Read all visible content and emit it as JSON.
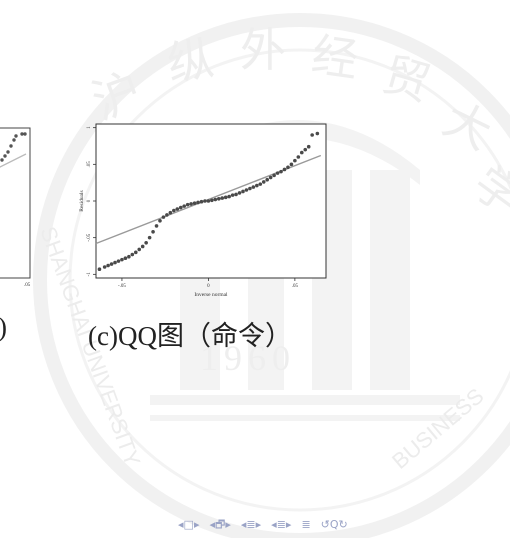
{
  "watermark": {
    "year": "1960",
    "ring_text_left": "SHANGHAI UNIVERSITY",
    "ring_text_right": "BUSINESS"
  },
  "left_figure": {
    "tick_label": ".05",
    "caption_fragment": ")"
  },
  "qq_plot": {
    "xlabel": "Inverse normal",
    "ylabel": "Residuals",
    "x_ticks": [
      "-.05",
      "0",
      ".05"
    ],
    "y_ticks": [
      "-1",
      "-.05",
      "0",
      ".05",
      "1"
    ],
    "caption": "(c)QQ图（命令）"
  },
  "chart_data": {
    "type": "scatter",
    "title": "",
    "xlabel": "Inverse normal",
    "ylabel": "Residuals",
    "xlim": [
      -0.065,
      0.068
    ],
    "ylim": [
      -1.05,
      1.05
    ],
    "reference_line": {
      "x": [
        -0.065,
        0.065
      ],
      "y": [
        -0.58,
        0.62
      ]
    },
    "series": [
      {
        "x": [
          -0.063,
          -0.06,
          -0.058,
          -0.056,
          -0.054,
          -0.052,
          -0.05,
          -0.048,
          -0.046,
          -0.044,
          -0.042,
          -0.04,
          -0.038,
          -0.036,
          -0.034,
          -0.032,
          -0.03,
          -0.028,
          -0.026,
          -0.024,
          -0.022,
          -0.02,
          -0.018,
          -0.016,
          -0.014,
          -0.012,
          -0.01,
          -0.008,
          -0.006,
          -0.004,
          -0.002,
          0.0,
          0.002,
          0.004,
          0.006,
          0.008,
          0.01,
          0.012,
          0.014,
          0.016,
          0.018,
          0.02,
          0.022,
          0.024,
          0.026,
          0.028,
          0.03,
          0.032,
          0.034,
          0.036,
          0.038,
          0.04,
          0.042,
          0.044,
          0.046,
          0.048,
          0.05,
          0.052,
          0.054,
          0.056,
          0.058,
          0.06,
          0.063
        ],
        "y": [
          -0.93,
          -0.9,
          -0.88,
          -0.86,
          -0.84,
          -0.82,
          -0.8,
          -0.78,
          -0.76,
          -0.73,
          -0.7,
          -0.66,
          -0.62,
          -0.57,
          -0.5,
          -0.42,
          -0.34,
          -0.27,
          -0.22,
          -0.19,
          -0.16,
          -0.13,
          -0.11,
          -0.09,
          -0.07,
          -0.05,
          -0.04,
          -0.03,
          -0.02,
          -0.01,
          0.0,
          0.0,
          0.01,
          0.02,
          0.03,
          0.04,
          0.05,
          0.06,
          0.08,
          0.09,
          0.11,
          0.13,
          0.15,
          0.17,
          0.19,
          0.21,
          0.23,
          0.26,
          0.29,
          0.32,
          0.35,
          0.38,
          0.4,
          0.43,
          0.46,
          0.5,
          0.55,
          0.6,
          0.66,
          0.7,
          0.74,
          0.9,
          0.92
        ]
      }
    ]
  },
  "nav": {
    "items": [
      "◂",
      "□",
      "▸",
      "◂",
      "🗗",
      "▸",
      "◂",
      "≣",
      "▸",
      "◂",
      "≣",
      "▸",
      "≣",
      "↺",
      "Q",
      "↻"
    ]
  }
}
